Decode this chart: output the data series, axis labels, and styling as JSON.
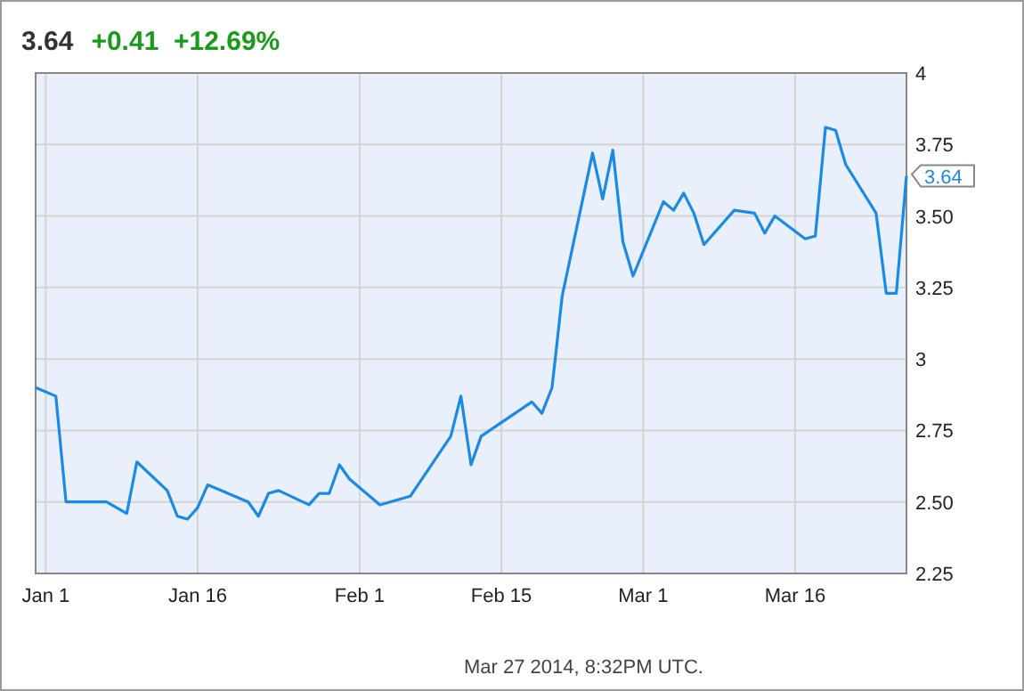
{
  "chart_data": {
    "type": "line",
    "title": "3.64",
    "subtitle": "+0.41  +12.69%",
    "x": [
      "2013-12-31",
      "2014-01-02",
      "2014-01-03",
      "2014-01-07",
      "2014-01-09",
      "2014-01-10",
      "2014-01-13",
      "2014-01-14",
      "2014-01-15",
      "2014-01-16",
      "2014-01-17",
      "2014-01-21",
      "2014-01-22",
      "2014-01-23",
      "2014-01-24",
      "2014-01-27",
      "2014-01-28",
      "2014-01-29",
      "2014-01-30",
      "2014-01-31",
      "2014-02-03",
      "2014-02-06",
      "2014-02-10",
      "2014-02-11",
      "2014-02-12",
      "2014-02-13",
      "2014-02-18",
      "2014-02-19",
      "2014-02-20",
      "2014-02-21",
      "2014-02-24",
      "2014-02-25",
      "2014-02-26",
      "2014-02-27",
      "2014-02-28",
      "2014-03-03",
      "2014-03-04",
      "2014-03-05",
      "2014-03-06",
      "2014-03-07",
      "2014-03-10",
      "2014-03-12",
      "2014-03-13",
      "2014-03-14",
      "2014-03-17",
      "2014-03-18",
      "2014-03-19",
      "2014-03-20",
      "2014-03-21",
      "2014-03-24",
      "2014-03-25",
      "2014-03-26",
      "2014-03-27"
    ],
    "series": [
      {
        "color": "#1a8ae6",
        "values": [
          2.9,
          2.87,
          2.5,
          2.5,
          2.46,
          2.64,
          2.54,
          2.45,
          2.44,
          2.48,
          2.56,
          2.5,
          2.45,
          2.53,
          2.54,
          2.49,
          2.53,
          2.53,
          2.63,
          2.58,
          2.49,
          2.52,
          2.73,
          2.87,
          2.63,
          2.73,
          2.85,
          2.81,
          2.9,
          3.22,
          3.72,
          3.56,
          3.73,
          3.41,
          3.29,
          3.55,
          3.52,
          3.58,
          3.51,
          3.4,
          3.52,
          3.51,
          3.44,
          3.5,
          3.42,
          3.43,
          3.81,
          3.8,
          3.68,
          3.51,
          3.23,
          3.23,
          3.64
        ]
      }
    ],
    "xlim": [
      "2013-12-31",
      "2014-03-27"
    ],
    "xticks": [
      {
        "value": "2014-01-01",
        "label": "Jan 1"
      },
      {
        "value": "2014-01-16",
        "label": "Jan 16"
      },
      {
        "value": "2014-02-01",
        "label": "Feb 1"
      },
      {
        "value": "2014-02-15",
        "label": "Feb 15"
      },
      {
        "value": "2014-03-01",
        "label": "Mar 1"
      },
      {
        "value": "2014-03-16",
        "label": "Mar 16"
      }
    ],
    "ylim": [
      2.25,
      4
    ],
    "yticks": [
      2.25,
      {
        "value": 2.5,
        "label": "2.50"
      },
      2.75,
      3,
      3.25,
      {
        "value": 3.5,
        "label": "3.50"
      },
      3.75,
      4
    ],
    "grid": true,
    "marker": "none",
    "line_style": "solid",
    "annotations": [
      {
        "text": "3.64",
        "x": "2014-03-27",
        "y": 3.64
      },
      "Mar 27 2014, 8:32PM UTC."
    ]
  }
}
